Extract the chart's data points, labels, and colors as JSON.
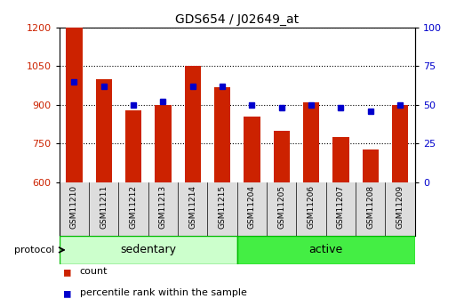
{
  "title": "GDS654 / J02649_at",
  "samples": [
    "GSM11210",
    "GSM11211",
    "GSM11212",
    "GSM11213",
    "GSM11214",
    "GSM11215",
    "GSM11204",
    "GSM11205",
    "GSM11206",
    "GSM11207",
    "GSM11208",
    "GSM11209"
  ],
  "counts": [
    1200,
    1000,
    880,
    900,
    1050,
    970,
    855,
    800,
    910,
    775,
    725,
    900
  ],
  "percentiles": [
    65,
    62,
    50,
    52,
    62,
    62,
    50,
    48,
    50,
    48,
    46,
    50
  ],
  "ylim_left": [
    600,
    1200
  ],
  "ylim_right": [
    0,
    100
  ],
  "yticks_left": [
    600,
    750,
    900,
    1050,
    1200
  ],
  "yticks_right": [
    0,
    25,
    50,
    75,
    100
  ],
  "bar_color": "#cc2200",
  "dot_color": "#0000cc",
  "bar_width": 0.55,
  "groups": [
    {
      "label": "sedentary",
      "start": 0,
      "end": 6,
      "color": "#ccffcc"
    },
    {
      "label": "active",
      "start": 6,
      "end": 12,
      "color": "#44ee44"
    }
  ],
  "protocol_label": "protocol",
  "legend_count": "count",
  "legend_percentile": "percentile rank within the sample",
  "background_color": "#ffffff",
  "grid_color": "#000000",
  "tick_label_color_left": "#cc2200",
  "tick_label_color_right": "#0000cc",
  "base_value": 600,
  "figsize": [
    5.13,
    3.45
  ],
  "dpi": 100,
  "xtick_bg": "#dddddd",
  "sep_color": "#00bb00"
}
